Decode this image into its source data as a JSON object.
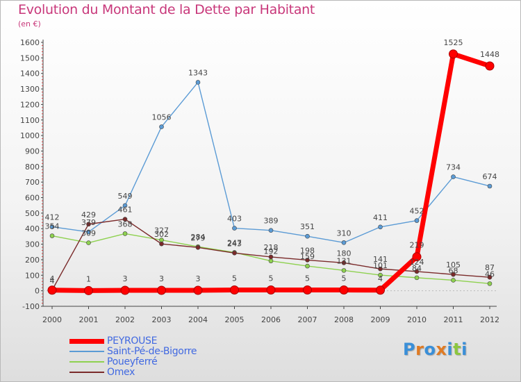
{
  "title": "Evolution du Montant de la Dette par Habitant",
  "subtitle": "(en €)",
  "colors": {
    "title": "#c8377a",
    "axis": "#444444",
    "legend_text": "#4169e1"
  },
  "chart_data": {
    "type": "line",
    "title": "Evolution du Montant de la Dette par Habitant",
    "subtitle": "(en €)",
    "x": [
      "2000",
      "2001",
      "2002",
      "2003",
      "2004",
      "2005",
      "2006",
      "2007",
      "2008",
      "2009",
      "2010",
      "2011",
      "2012"
    ],
    "ylim": [
      -100,
      1600
    ],
    "yticks": [
      -100,
      0,
      100,
      200,
      300,
      400,
      500,
      600,
      700,
      800,
      900,
      1000,
      1100,
      1200,
      1300,
      1400,
      1500,
      1600
    ],
    "legend_position": "bottom-left",
    "grid": false,
    "series": [
      {
        "name": "PEYROUSE",
        "color": "#ff0000",
        "values": [
          4,
          1,
          3,
          3,
          3,
          5,
          5,
          5,
          5,
          4,
          219,
          1525,
          1448
        ],
        "labels": [
          "4",
          "1",
          "3",
          "3",
          "3",
          "5",
          "5",
          "5",
          "5",
          "4",
          "219",
          "1525",
          "1448"
        ]
      },
      {
        "name": "Saint-Pé-de-Bigorre",
        "color": "#5b9bd5",
        "values": [
          412,
          379,
          549,
          1056,
          1343,
          403,
          389,
          351,
          310,
          411,
          452,
          734,
          674
        ],
        "labels": [
          "412",
          "379",
          "549",
          "1056",
          "1343",
          "403",
          "389",
          "351",
          "310",
          "411",
          "452",
          "734",
          "674"
        ]
      },
      {
        "name": "Poueyferré",
        "color": "#8ed14f",
        "values": [
          354,
          309,
          368,
          327,
          284,
          247,
          192,
          159,
          131,
          101,
          84,
          68,
          46
        ],
        "labels": [
          "354",
          "309",
          "368",
          "327",
          "284",
          "247",
          "192",
          "159",
          "131",
          "101",
          "84",
          "68",
          "46"
        ]
      },
      {
        "name": "Omex",
        "color": "#7a2a2a",
        "values": [
          4,
          429,
          461,
          302,
          279,
          243,
          218,
          198,
          180,
          141,
          124,
          105,
          87
        ],
        "labels": [
          "4",
          "429",
          "461",
          "302",
          "279",
          "243",
          "218",
          "198",
          "180",
          "141",
          "124",
          "105",
          "87"
        ]
      }
    ]
  },
  "legend": {
    "items": [
      {
        "label": "PEYROUSE",
        "color": "#ff0000"
      },
      {
        "label": "Saint-Pé-de-Bigorre",
        "color": "#5b9bd5"
      },
      {
        "label": "Poueyferré",
        "color": "#8ed14f"
      },
      {
        "label": "Omex",
        "color": "#7a2a2a"
      }
    ]
  },
  "logo": {
    "letters": [
      "P",
      "r",
      "o",
      "x",
      "i",
      "t",
      "i"
    ],
    "colors": [
      "#3a8fd8",
      "#e07b24",
      "#3a8fd8",
      "#e07b24",
      "#3a8fd8",
      "#8cc63f",
      "#3a8fd8"
    ]
  }
}
